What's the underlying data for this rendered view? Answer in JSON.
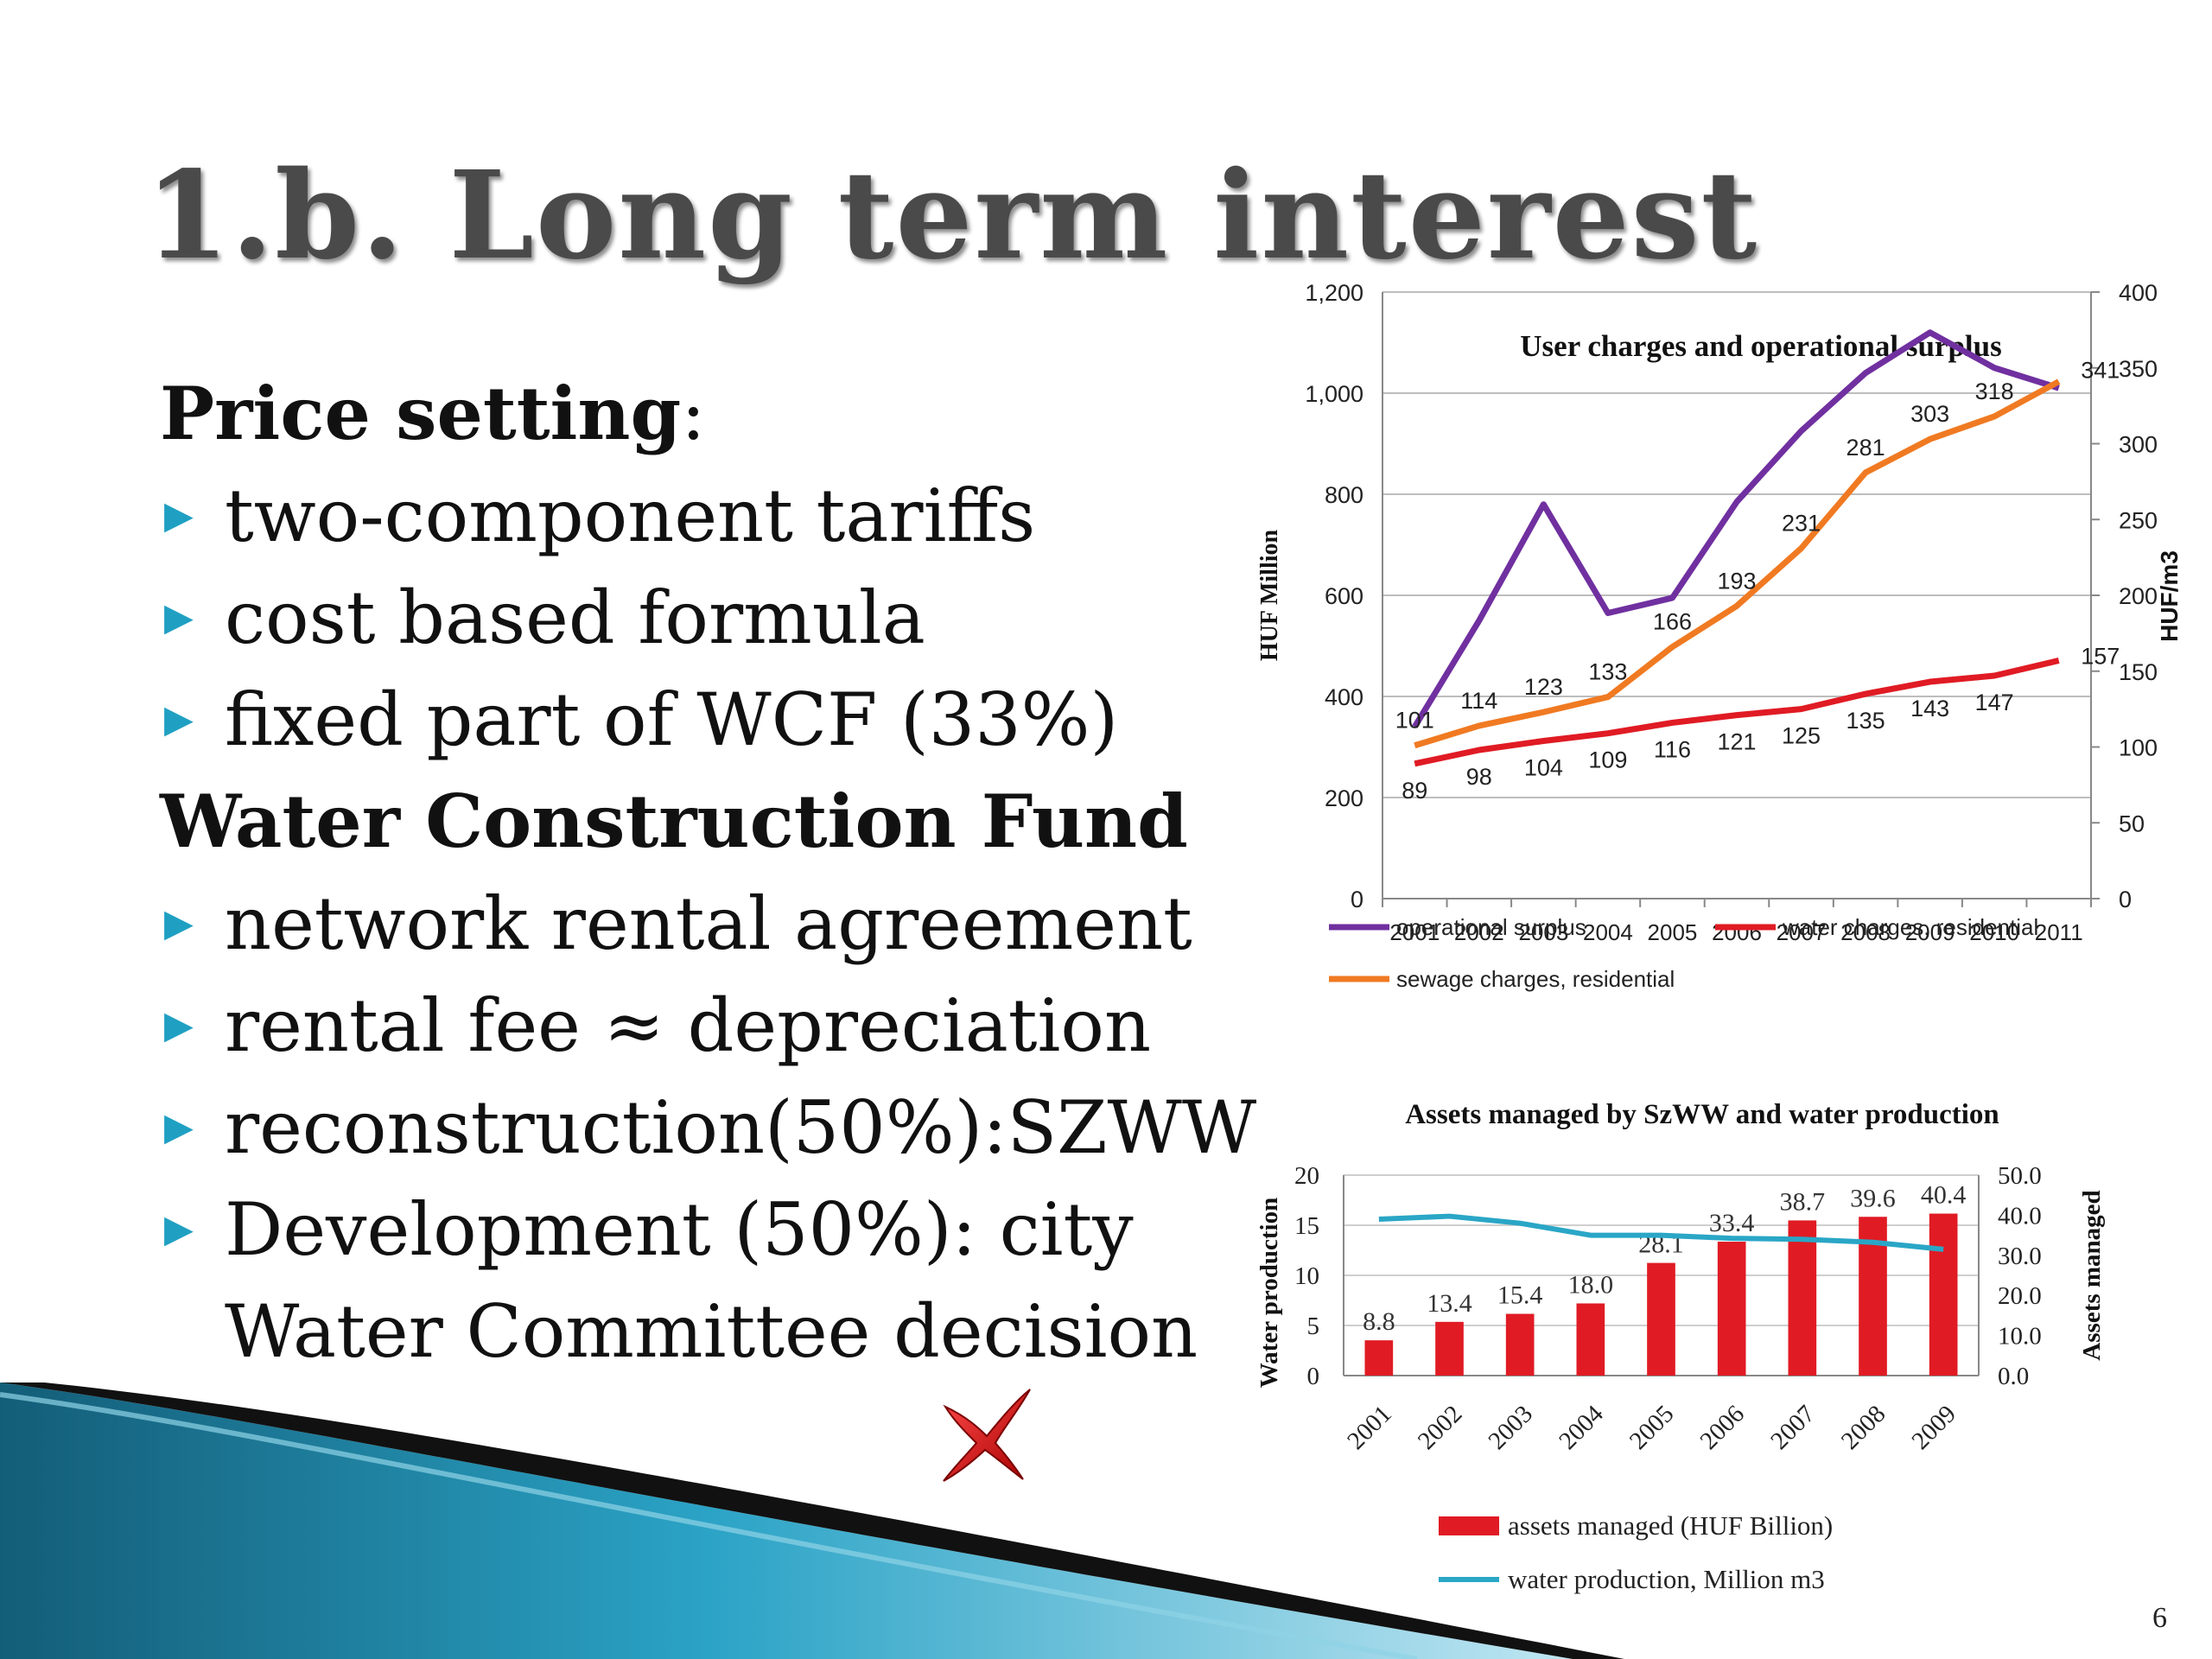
{
  "slide": {
    "title": "1.b. Long term interest",
    "page_number": "6",
    "sections": [
      {
        "heading": "Price setting",
        "suffix": ":",
        "items": [
          "two-component tariffs",
          "cost based formula",
          "fixed part of WCF (33%)"
        ]
      },
      {
        "heading": "Water Construction Fund",
        "suffix": "",
        "items": [
          "network rental agreement",
          "rental fee ≈ depreciation",
          "reconstruction(50%):SZWW"
        ]
      }
    ],
    "development_item": [
      "Development (50%): city",
      "Water Committee decision"
    ],
    "decor": {
      "accent": "#1fa0c3",
      "cross_icon": "red-cross-icon"
    }
  },
  "chart_data": [
    {
      "type": "line",
      "title": "User charges and operational surplus",
      "x": [
        "2001",
        "2002",
        "2003",
        "2004",
        "2005",
        "2006",
        "2007",
        "2008",
        "2009",
        "2010",
        "2011"
      ],
      "ylabel": "HUF Million",
      "ylim": [
        0,
        1200
      ],
      "yticks": [
        "0",
        "200",
        "400",
        "600",
        "800",
        "1,000",
        "1,200"
      ],
      "y2label": "HUF/m3",
      "y2lim": [
        0,
        400
      ],
      "y2ticks": [
        "0",
        "50",
        "100",
        "150",
        "200",
        "250",
        "300",
        "350",
        "400"
      ],
      "grid": true,
      "legend": "bottom",
      "series": [
        {
          "name": "operational surplus",
          "axis": "left",
          "color": "#7030a0",
          "values": [
            340,
            550,
            780,
            565,
            595,
            785,
            925,
            1040,
            1120,
            1050,
            1010
          ]
        },
        {
          "name": "water charges, residential",
          "axis": "right",
          "color": "#e01b24",
          "values": [
            89,
            98,
            104,
            109,
            116,
            121,
            125,
            135,
            143,
            147,
            157
          ],
          "labels": [
            "89",
            "98",
            "104",
            "109",
            "116",
            "121",
            "125",
            "135",
            "143",
            "147",
            "157"
          ]
        },
        {
          "name": "sewage charges, residential",
          "axis": "right",
          "color": "#f07a22",
          "values": [
            101,
            114,
            123,
            133,
            166,
            193,
            231,
            281,
            303,
            318,
            341
          ],
          "labels": [
            "101",
            "114",
            "123",
            "133",
            "166",
            "193",
            "231",
            "281",
            "303",
            "318",
            "341"
          ]
        }
      ]
    },
    {
      "type": "bar",
      "title": "Assets managed by SzWW and water production",
      "categories": [
        "2001",
        "2002",
        "2003",
        "2004",
        "2005",
        "2006",
        "2007",
        "2008",
        "2009"
      ],
      "ylabel": "Water production",
      "ylim": [
        0,
        20
      ],
      "yticks": [
        "0",
        "5",
        "10",
        "15",
        "20"
      ],
      "y2label": "Assets managed",
      "y2lim": [
        0,
        50
      ],
      "y2ticks": [
        "0.0",
        "10.0",
        "20.0",
        "30.0",
        "40.0",
        "50.0"
      ],
      "legend": "bottom",
      "series": [
        {
          "name": "assets managed (HUF Billion)",
          "kind": "bar",
          "axis": "right",
          "color": "#e01b24",
          "values": [
            8.8,
            13.4,
            15.4,
            18.0,
            28.1,
            33.4,
            38.7,
            39.6,
            40.4
          ],
          "labels": [
            "8.8",
            "13.4",
            "15.4",
            "18.0",
            "28.1",
            "33.4",
            "38.7",
            "39.6",
            "40.4"
          ]
        },
        {
          "name": "water production, Million m3",
          "kind": "line",
          "axis": "left",
          "color": "#2aa6c6",
          "values": [
            15.6,
            15.9,
            15.2,
            14.0,
            14.0,
            13.7,
            13.6,
            13.3,
            12.6
          ]
        }
      ]
    }
  ]
}
